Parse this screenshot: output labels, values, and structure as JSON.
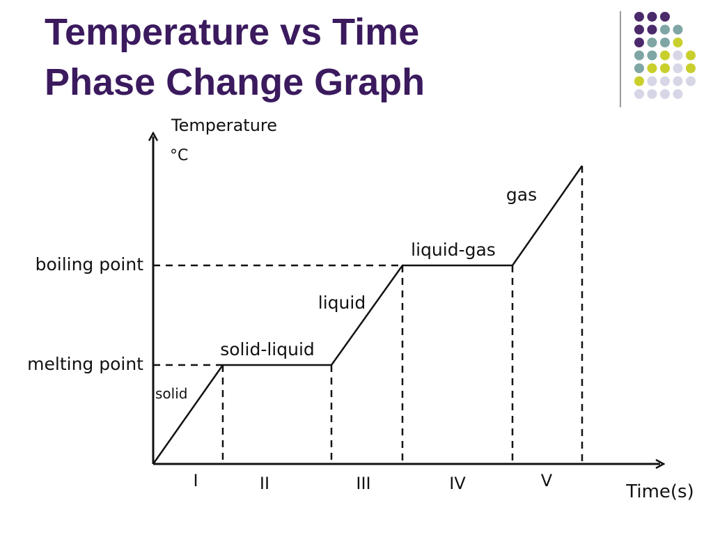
{
  "title": {
    "line1": "Temperature vs Time",
    "line2": "Phase Change Graph"
  },
  "colors": {
    "title": "#3b1a5e",
    "dot_purple": "#4b2a6b",
    "dot_teal": "#7fa6a4",
    "dot_lime": "#c9cf2c",
    "dot_lavender": "#d6d6e6",
    "line": "#111111"
  },
  "chart_data": {
    "type": "line",
    "title": "",
    "ylabel_line1": "Temperature",
    "ylabel_unit": "°C",
    "xlabel": "Time(s)",
    "y_ticks": [
      "boiling point",
      "melting point"
    ],
    "x_sections": [
      "I",
      "II",
      "III",
      "IV",
      "V"
    ],
    "series": [
      {
        "points": [
          [
            0,
            0
          ],
          [
            1,
            1
          ],
          [
            2,
            1
          ],
          [
            3,
            2
          ],
          [
            4,
            2
          ],
          [
            5,
            3
          ]
        ]
      }
    ],
    "phase_labels": [
      "solid",
      "solid-liquid",
      "liquid",
      "liquid-gas",
      "gas"
    ],
    "grid": false
  }
}
